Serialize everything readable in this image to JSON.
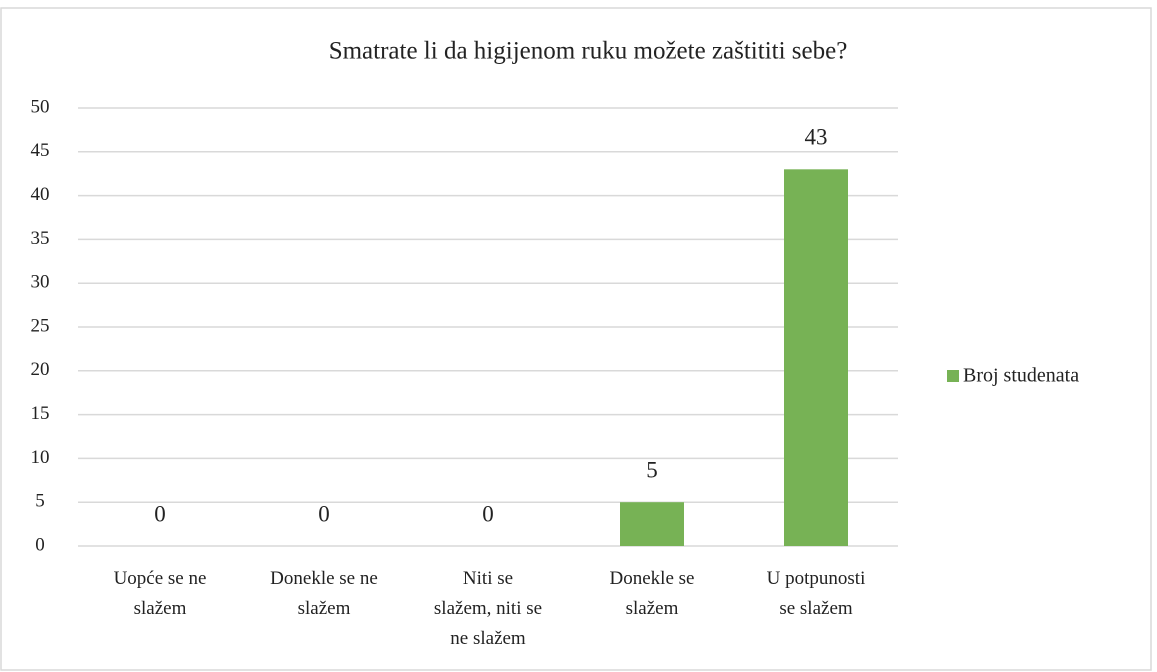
{
  "chart_data": {
    "type": "bar",
    "title": "Smatrate li da higijenom ruku možete zaštititi sebe?",
    "categories": [
      [
        "Uopće se ne",
        "slažem"
      ],
      [
        "Donekle se ne",
        "slažem"
      ],
      [
        "Niti se",
        "slažem, niti se",
        "ne slažem"
      ],
      [
        "Donekle se",
        "slažem"
      ],
      [
        "U potpunosti",
        "se slažem"
      ]
    ],
    "series": [
      {
        "name": "Broj studenata",
        "color": "#77b255",
        "values": [
          0,
          0,
          0,
          5,
          43
        ]
      }
    ],
    "ylim": [
      0,
      50
    ],
    "yticks": [
      0,
      5,
      10,
      15,
      20,
      25,
      30,
      35,
      40,
      45,
      50
    ],
    "grid": true,
    "legend": "right"
  }
}
